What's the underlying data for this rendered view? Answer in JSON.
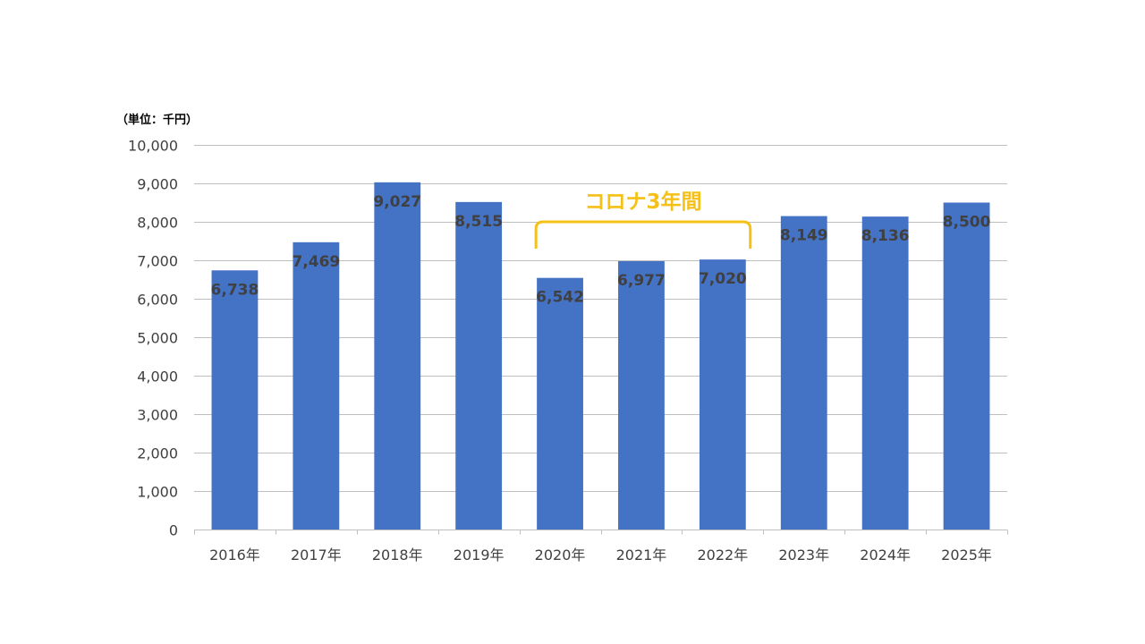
{
  "chart_data": {
    "type": "bar",
    "unit_label": "（単位：千円）",
    "categories": [
      "2016年",
      "2017年",
      "2018年",
      "2019年",
      "2020年",
      "2021年",
      "2022年",
      "2023年",
      "2024年",
      "2025年"
    ],
    "values": [
      6738,
      7469,
      9027,
      8515,
      6542,
      6977,
      7020,
      8149,
      8136,
      8500
    ],
    "value_labels": [
      "6,738",
      "7,469",
      "9,027",
      "8,515",
      "6,542",
      "6,977",
      "7,020",
      "8,149",
      "8,136",
      "8,500"
    ],
    "ylim": [
      0,
      10000
    ],
    "yticks": [
      0,
      1000,
      2000,
      3000,
      4000,
      5000,
      6000,
      7000,
      8000,
      9000,
      10000
    ],
    "ytick_labels": [
      "0",
      "1,000",
      "2,000",
      "3,000",
      "4,000",
      "5,000",
      "6,000",
      "7,000",
      "8,000",
      "9,000",
      "10,000"
    ],
    "grid": true,
    "colors": {
      "bar": "#4472c4",
      "annotation": "#f5c018"
    },
    "annotation": {
      "text": "コロナ3年間",
      "span_categories": [
        "2020年",
        "2022年"
      ],
      "shape": "bracket"
    }
  }
}
